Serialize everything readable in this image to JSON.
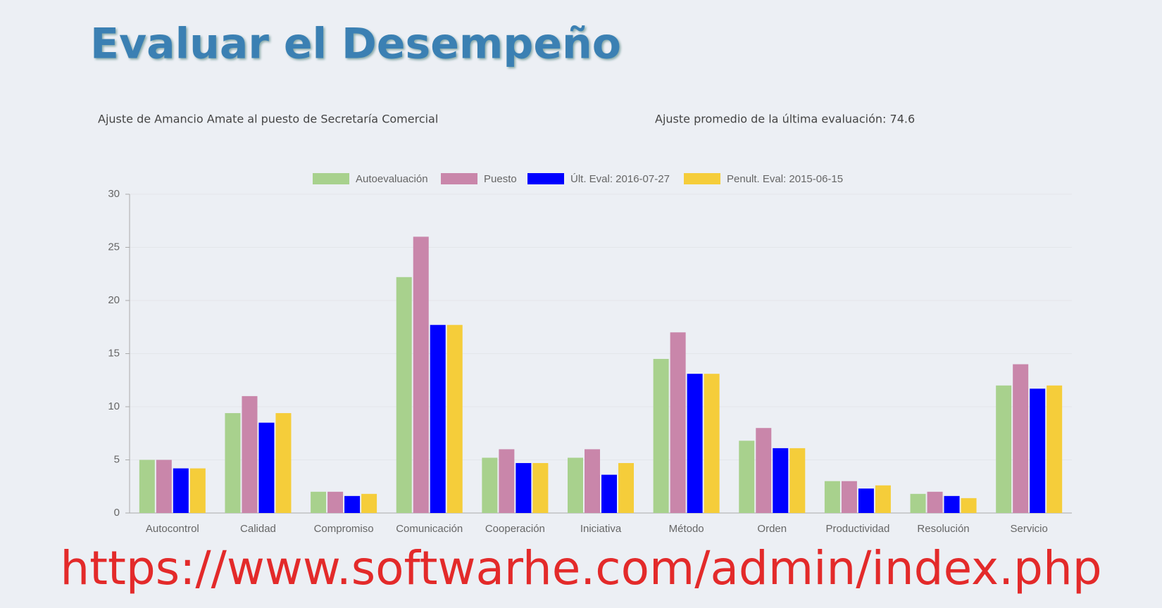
{
  "header": {
    "title": "Evaluar el Desempeño"
  },
  "chart_data": {
    "type": "bar",
    "title": "Ajuste de Amancio Amate al puesto de Secretaría Comercial",
    "subtitle": "Ajuste promedio de la última evaluación: 74.6",
    "categories": [
      "Autocontrol",
      "Calidad",
      "Compromiso",
      "Comunicación",
      "Cooperación",
      "Iniciativa",
      "Método",
      "Orden",
      "Productividad",
      "Resolución",
      "Servicio"
    ],
    "series": [
      {
        "name": "Autoevaluación",
        "color": "#a8d18d",
        "values": [
          5,
          9.4,
          2,
          22.2,
          5.2,
          5.2,
          14.5,
          6.8,
          3,
          1.8,
          12
        ]
      },
      {
        "name": "Puesto",
        "color": "#c986aa",
        "values": [
          5,
          11,
          2,
          26,
          6,
          6,
          17,
          8,
          3,
          2,
          14
        ]
      },
      {
        "name": "Últ. Eval: 2016-07-27",
        "color": "#0000ff",
        "values": [
          4.2,
          8.5,
          1.6,
          17.7,
          4.7,
          3.6,
          13.1,
          6.1,
          2.3,
          1.6,
          11.7
        ]
      },
      {
        "name": "Penult. Eval: 2015-06-15",
        "color": "#f5cd3a",
        "values": [
          4.2,
          9.4,
          1.8,
          17.7,
          4.7,
          4.7,
          13.1,
          6.1,
          2.6,
          1.4,
          12
        ]
      }
    ],
    "ylim": [
      0,
      30
    ],
    "yticks": [
      0,
      5,
      10,
      15,
      20,
      25,
      30
    ],
    "grid": true,
    "legend": "top"
  },
  "footer": {
    "url": "https://www.softwarhe.com/admin/index.php"
  }
}
